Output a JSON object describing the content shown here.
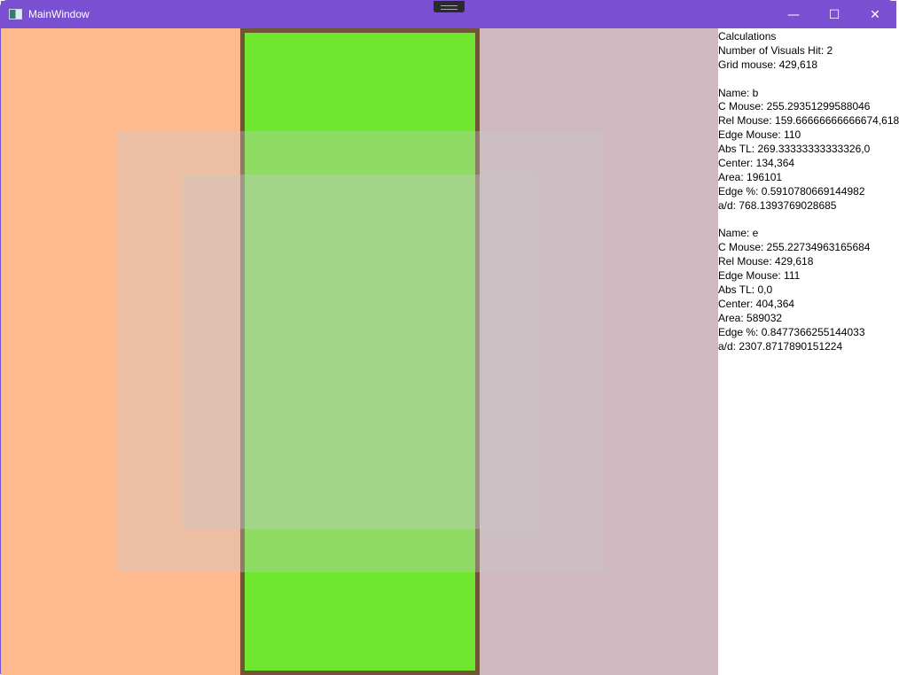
{
  "window": {
    "title": "MainWindow",
    "minimize": "—",
    "maximize": "☐",
    "close": "✕"
  },
  "colors": {
    "titlebar": "#7b4fd1",
    "left": "#ffb98f",
    "middle_border": "#6e5535",
    "middle_fill": "#6fe72f",
    "right": "#cfb8c0"
  },
  "panel": {
    "heading": "Calculations",
    "visuals_hit": "Number of Visuals Hit: 2",
    "grid_mouse": "Grid mouse: 429,618",
    "b": {
      "name": "Name: b",
      "c_mouse": "C Mouse: 255.29351299588046",
      "rel_mouse": "Rel Mouse: 159.66666666666674,618",
      "edge_mouse": "Edge Mouse: 110",
      "abs_tl": "Abs TL: 269.33333333333326,0",
      "center": "Center: 134,364",
      "area": "Area: 196101",
      "edge_pct": "Edge %: 0.5910780669144982",
      "ad": "a/d: 768.1393769028685"
    },
    "e": {
      "name": "Name: e",
      "c_mouse": "C Mouse: 255.22734963165684",
      "rel_mouse": "Rel Mouse: 429,618",
      "edge_mouse": "Edge Mouse: 111",
      "abs_tl": "Abs TL: 0,0",
      "center": "Center: 404,364",
      "area": "Area: 589032",
      "edge_pct": "Edge %: 0.8477366255144033",
      "ad": "a/d: 2307.8717890151224"
    }
  }
}
